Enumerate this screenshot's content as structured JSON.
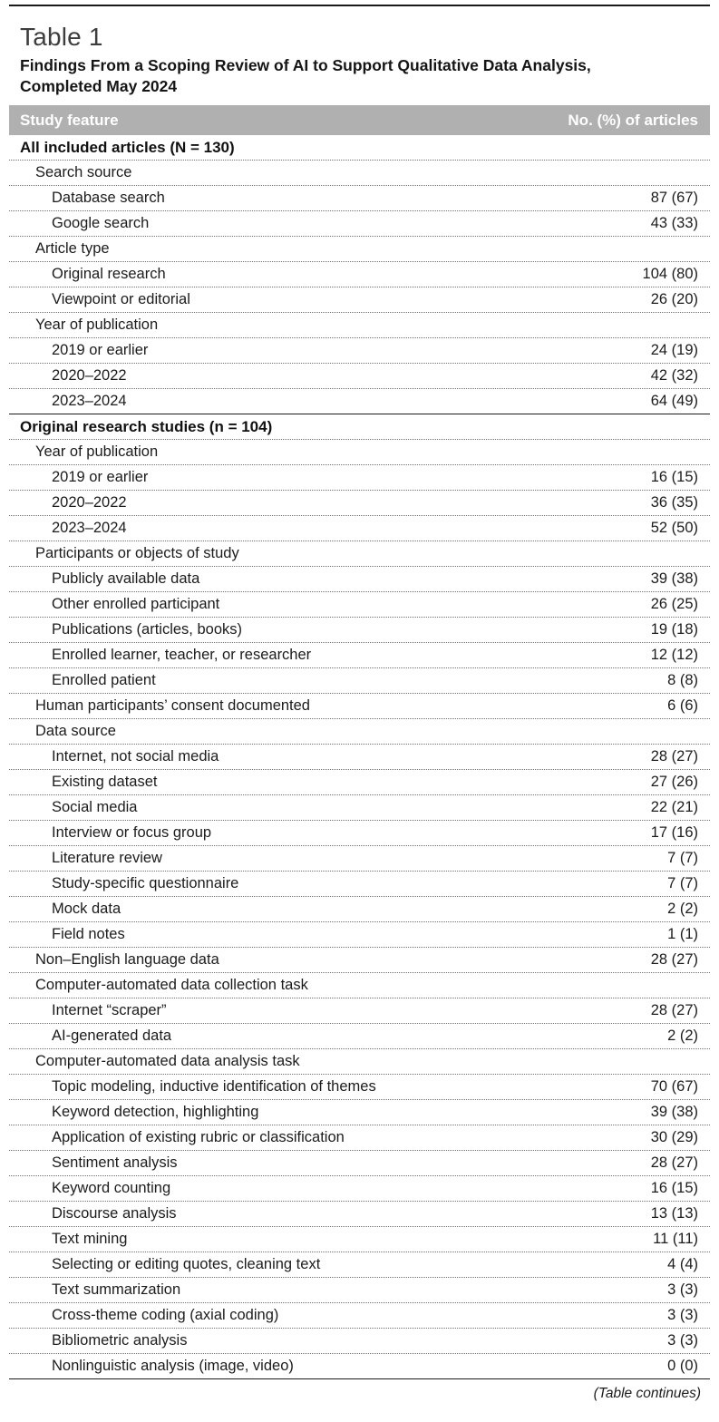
{
  "table": {
    "label": "Table 1",
    "title_line1": "Findings From a Scoping Review of AI to Support Qualitative Data Analysis,",
    "title_line2": "Completed May 2024",
    "columns": {
      "feature": "Study feature",
      "value": "No. (%) of articles"
    },
    "header_bg_color": "#b0b0b0",
    "footer_note": "(Table continues)",
    "sections": [
      {
        "header": "All included articles (N = 130)",
        "rows": [
          {
            "label": "Search source",
            "indent": 1,
            "value": ""
          },
          {
            "label": "Database search",
            "indent": 2,
            "value": "87 (67)"
          },
          {
            "label": "Google search",
            "indent": 2,
            "value": "43 (33)"
          },
          {
            "label": "Article type",
            "indent": 1,
            "value": ""
          },
          {
            "label": "Original research",
            "indent": 2,
            "value": "104 (80)"
          },
          {
            "label": "Viewpoint or editorial",
            "indent": 2,
            "value": "26 (20)"
          },
          {
            "label": "Year of publication",
            "indent": 1,
            "value": ""
          },
          {
            "label": "2019 or earlier",
            "indent": 2,
            "value": "24 (19)"
          },
          {
            "label": "2020–2022",
            "indent": 2,
            "value": "42 (32)"
          },
          {
            "label": "2023–2024",
            "indent": 2,
            "value": "64 (49)"
          }
        ]
      },
      {
        "header": "Original research studies (n = 104)",
        "rows": [
          {
            "label": "Year of publication",
            "indent": 1,
            "value": ""
          },
          {
            "label": "2019 or earlier",
            "indent": 2,
            "value": "16 (15)"
          },
          {
            "label": "2020–2022",
            "indent": 2,
            "value": "36 (35)"
          },
          {
            "label": "2023–2024",
            "indent": 2,
            "value": "52 (50)"
          },
          {
            "label": "Participants or objects of study",
            "indent": 1,
            "value": ""
          },
          {
            "label": "Publicly available data",
            "indent": 2,
            "value": "39 (38)"
          },
          {
            "label": "Other enrolled participant",
            "indent": 2,
            "value": "26 (25)"
          },
          {
            "label": "Publications (articles, books)",
            "indent": 2,
            "value": "19 (18)"
          },
          {
            "label": "Enrolled learner, teacher, or researcher",
            "indent": 2,
            "value": "12 (12)"
          },
          {
            "label": "Enrolled patient",
            "indent": 2,
            "value": "8 (8)"
          },
          {
            "label": "Human participants’ consent documented",
            "indent": 1,
            "value": "6 (6)"
          },
          {
            "label": "Data source",
            "indent": 1,
            "value": ""
          },
          {
            "label": "Internet, not social media",
            "indent": 2,
            "value": "28 (27)"
          },
          {
            "label": "Existing dataset",
            "indent": 2,
            "value": "27 (26)"
          },
          {
            "label": "Social media",
            "indent": 2,
            "value": "22 (21)"
          },
          {
            "label": "Interview or focus group",
            "indent": 2,
            "value": "17 (16)"
          },
          {
            "label": "Literature review",
            "indent": 2,
            "value": "7 (7)"
          },
          {
            "label": "Study-specific questionnaire",
            "indent": 2,
            "value": "7 (7)"
          },
          {
            "label": "Mock data",
            "indent": 2,
            "value": "2 (2)"
          },
          {
            "label": "Field notes",
            "indent": 2,
            "value": "1 (1)"
          },
          {
            "label": "Non–English language data",
            "indent": 1,
            "value": "28 (27)"
          },
          {
            "label": "Computer-automated data collection task",
            "indent": 1,
            "value": ""
          },
          {
            "label": "Internet “scraper”",
            "indent": 2,
            "value": "28 (27)"
          },
          {
            "label": "AI-generated data",
            "indent": 2,
            "value": "2 (2)"
          },
          {
            "label": "Computer-automated data analysis task",
            "indent": 1,
            "value": ""
          },
          {
            "label": "Topic modeling, inductive identification of themes",
            "indent": 2,
            "value": "70 (67)"
          },
          {
            "label": "Keyword detection, highlighting",
            "indent": 2,
            "value": "39 (38)"
          },
          {
            "label": "Application of existing rubric or classification",
            "indent": 2,
            "value": "30 (29)"
          },
          {
            "label": "Sentiment analysis",
            "indent": 2,
            "value": "28 (27)"
          },
          {
            "label": "Keyword counting",
            "indent": 2,
            "value": "16 (15)"
          },
          {
            "label": "Discourse analysis",
            "indent": 2,
            "value": "13 (13)"
          },
          {
            "label": "Text mining",
            "indent": 2,
            "value": "11 (11)"
          },
          {
            "label": "Selecting or editing quotes, cleaning text",
            "indent": 2,
            "value": "4 (4)"
          },
          {
            "label": "Text summarization",
            "indent": 2,
            "value": "3 (3)"
          },
          {
            "label": "Cross-theme coding (axial coding)",
            "indent": 2,
            "value": "3 (3)"
          },
          {
            "label": "Bibliometric analysis",
            "indent": 2,
            "value": "3 (3)"
          },
          {
            "label": "Nonlinguistic analysis (image, video)",
            "indent": 2,
            "value": "0 (0)"
          }
        ]
      }
    ]
  }
}
